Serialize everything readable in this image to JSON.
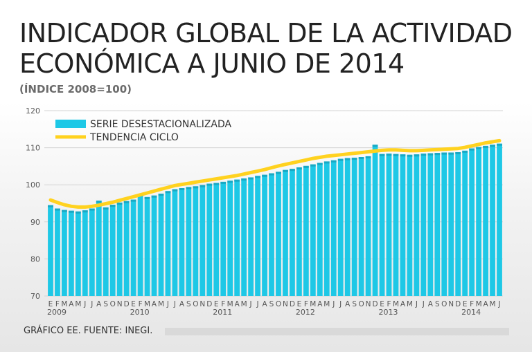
{
  "header": {
    "title": "INDICADOR GLOBAL DE LA ACTIVIDAD ECONÓMICA A JUNIO DE 2014",
    "subtitle": "(ÍNDICE 2008=100)"
  },
  "footer": {
    "source": "GRÁFICO EE. FUENTE: INEGI."
  },
  "colors": {
    "bars": "#1ec8e6",
    "bar_edge": "#18a9c4",
    "trend": "#ffd21f",
    "grid": "#d3d3d3",
    "axis_text": "#555555"
  },
  "chart_data": {
    "type": "bar",
    "title": "INDICADOR GLOBAL DE LA ACTIVIDAD ECONÓMICA A JUNIO DE 2014",
    "subtitle": "(ÍNDICE 2008=100)",
    "ylim": [
      70,
      120
    ],
    "yticks": [
      70,
      80,
      90,
      100,
      110,
      120
    ],
    "grid": true,
    "legend_position": "top-left",
    "month_labels": [
      "E",
      "F",
      "M",
      "A",
      "M",
      "J",
      "J",
      "A",
      "S",
      "O",
      "N",
      "D",
      "E",
      "F",
      "M",
      "A",
      "M",
      "J",
      "J",
      "A",
      "S",
      "O",
      "N",
      "D",
      "E",
      "F",
      "M",
      "A",
      "M",
      "J",
      "J",
      "A",
      "S",
      "O",
      "N",
      "D",
      "E",
      "F",
      "M",
      "A",
      "M",
      "J",
      "J",
      "A",
      "S",
      "O",
      "N",
      "D",
      "E",
      "F",
      "M",
      "A",
      "M",
      "J",
      "J",
      "A",
      "S",
      "O",
      "N",
      "D",
      "E",
      "F",
      "M",
      "A",
      "M",
      "J"
    ],
    "year_labels": [
      {
        "label": "2009",
        "start_index": 0
      },
      {
        "label": "2010",
        "start_index": 12
      },
      {
        "label": "2011",
        "start_index": 24
      },
      {
        "label": "2012",
        "start_index": 36
      },
      {
        "label": "2013",
        "start_index": 48
      },
      {
        "label": "2014",
        "start_index": 60
      }
    ],
    "series": [
      {
        "name": "SERIE DESESTACIONALIZADA",
        "type": "bar",
        "values": [
          94.5,
          93.6,
          93.2,
          93.0,
          92.8,
          93.1,
          93.6,
          95.7,
          93.9,
          94.6,
          95.2,
          95.6,
          96.0,
          97.4,
          96.7,
          97.1,
          97.6,
          98.3,
          98.8,
          99.1,
          99.4,
          99.6,
          99.9,
          100.3,
          100.5,
          100.8,
          101.1,
          101.4,
          101.7,
          102.0,
          102.4,
          102.7,
          103.1,
          103.5,
          104.0,
          104.3,
          104.7,
          105.1,
          105.5,
          105.9,
          106.3,
          106.6,
          107.0,
          107.2,
          107.3,
          107.5,
          107.7,
          110.8,
          108.3,
          108.4,
          108.3,
          108.2,
          108.1,
          108.2,
          108.4,
          108.5,
          108.6,
          108.7,
          108.7,
          108.8,
          109.2,
          109.8,
          110.2,
          110.5,
          110.8,
          111.1
        ]
      },
      {
        "name": "TENDENCIA CICLO",
        "type": "line",
        "values": [
          95.9,
          95.2,
          94.6,
          94.2,
          94.0,
          94.0,
          94.2,
          94.5,
          94.9,
          95.3,
          95.8,
          96.3,
          96.8,
          97.3,
          97.8,
          98.3,
          98.8,
          99.3,
          99.8,
          100.1,
          100.4,
          100.7,
          101.0,
          101.3,
          101.6,
          101.9,
          102.2,
          102.5,
          102.9,
          103.3,
          103.7,
          104.1,
          104.6,
          105.1,
          105.5,
          105.9,
          106.3,
          106.7,
          107.1,
          107.4,
          107.7,
          107.9,
          108.1,
          108.3,
          108.5,
          108.7,
          108.9,
          109.1,
          109.3,
          109.4,
          109.4,
          109.3,
          109.2,
          109.2,
          109.3,
          109.4,
          109.5,
          109.6,
          109.7,
          109.8,
          110.1,
          110.5,
          110.9,
          111.3,
          111.6,
          111.9
        ]
      }
    ]
  }
}
